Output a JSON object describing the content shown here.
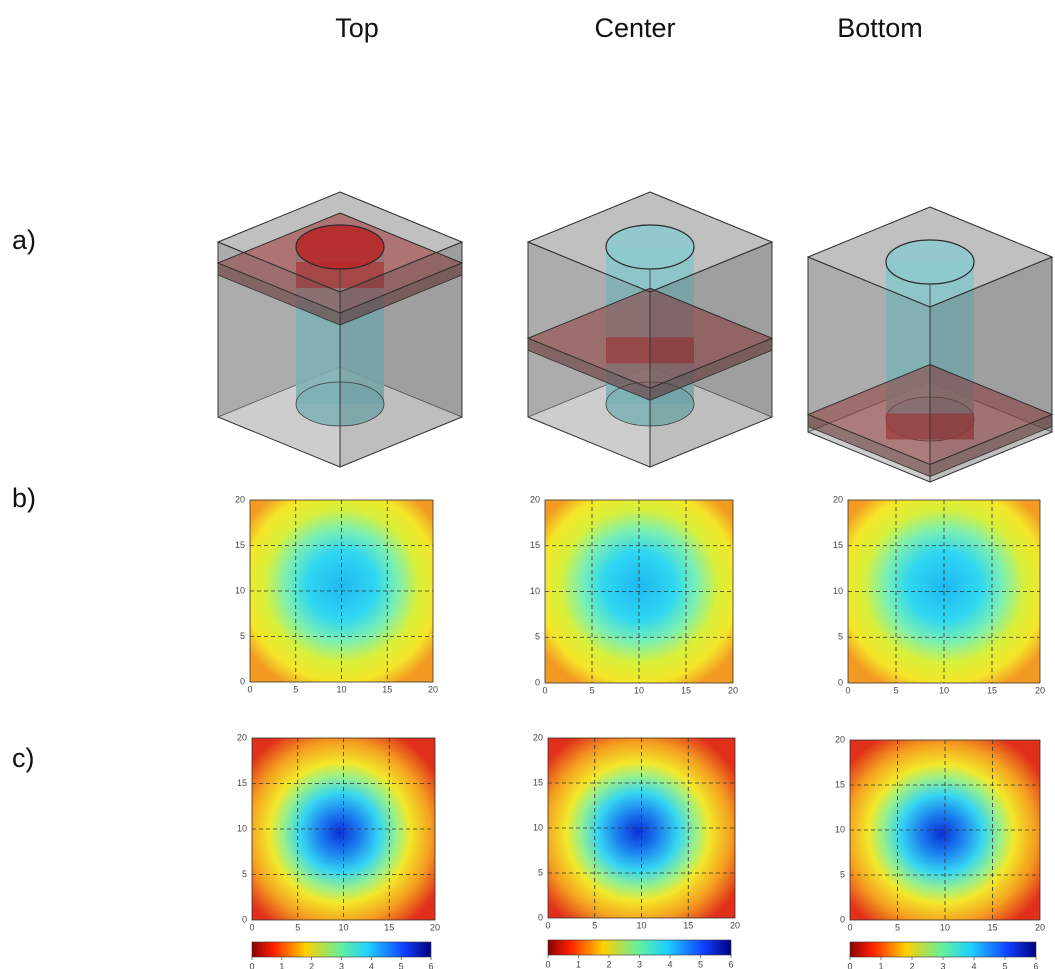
{
  "columns": [
    "Top",
    "Center",
    "Bottom"
  ],
  "rows": [
    "a)",
    "b)",
    "c)"
  ],
  "map_ticks": [
    0,
    5,
    10,
    15,
    20
  ],
  "colorbar_ticks": [
    0,
    1,
    2,
    3,
    4,
    5,
    6
  ]
}
